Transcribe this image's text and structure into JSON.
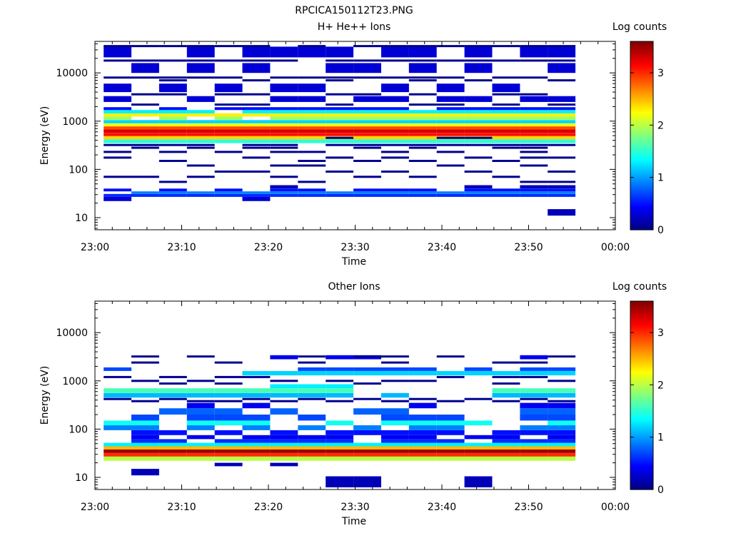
{
  "figure_title": "RPCICA150112T23.PNG",
  "chart_data": [
    {
      "type": "heatmap",
      "title": "H+ He++ Ions",
      "xlabel": "Time",
      "ylabel": "Energy (eV)",
      "x_ticks": [
        "23:00",
        "23:10",
        "23:20",
        "23:30",
        "23:40",
        "23:50",
        "00:00"
      ],
      "x_range_minutes": [
        0,
        60
      ],
      "y_scale": "log",
      "y_range": [
        5.6,
        45000
      ],
      "y_ticks": [
        {
          "label": "10",
          "value": 10
        },
        {
          "label": "100",
          "value": 100
        },
        {
          "label": "1000",
          "value": 1000
        },
        {
          "label": "10000",
          "value": 10000
        }
      ],
      "colorbar": {
        "label": "Log counts",
        "range": [
          0,
          3.6
        ],
        "ticks": [
          "0",
          "1",
          "2",
          "3"
        ],
        "colormap": "jet"
      },
      "time_bins_start_minutes": [
        1.0,
        4.2,
        7.4,
        10.6,
        13.8,
        17.0,
        20.2,
        23.4,
        26.6,
        29.8,
        33.0,
        36.2,
        39.4,
        42.6,
        45.8,
        49.0,
        52.2
      ],
      "time_bin_width_minutes": 3.2,
      "bands": [
        {
          "e_lo": 22,
          "e_hi": 27,
          "cols": [
            0,
            5
          ],
          "v": 0.3
        },
        {
          "e_lo": 27,
          "e_hi": 31,
          "cols": [
            0,
            1,
            2,
            3,
            4,
            5,
            6,
            7,
            8,
            9,
            10,
            11,
            12,
            13,
            14,
            15,
            16
          ],
          "v": 0.6
        },
        {
          "e_lo": 31,
          "e_hi": 35,
          "cols": [
            1,
            2,
            3,
            4,
            5,
            6,
            7,
            8,
            9,
            10,
            11,
            12,
            13,
            14,
            15,
            16
          ],
          "v": 0.9
        },
        {
          "e_lo": 35,
          "e_hi": 40,
          "cols": [
            0,
            2,
            4,
            6,
            7,
            9,
            10,
            11,
            13,
            14,
            15,
            16
          ],
          "v": 0.5
        },
        {
          "e_lo": 40,
          "e_hi": 47,
          "cols": [
            6,
            13,
            15,
            16
          ],
          "v": 0.2
        },
        {
          "e_lo": 11,
          "e_hi": 15,
          "cols": [
            16
          ],
          "v": 0.2
        },
        {
          "e_lo": 350,
          "e_hi": 420,
          "cols": [
            0,
            1,
            2,
            3,
            4,
            5,
            6,
            7,
            8,
            9,
            10,
            11,
            12,
            13,
            14,
            15,
            16
          ],
          "v": 1.5
        },
        {
          "e_lo": 420,
          "e_hi": 490,
          "cols": [
            0,
            1,
            2,
            3,
            4,
            5,
            6,
            7,
            8,
            9,
            10,
            11,
            12,
            13,
            14,
            15,
            16
          ],
          "v": 2.4
        },
        {
          "e_lo": 490,
          "e_hi": 570,
          "cols": [
            0,
            1,
            2,
            3,
            4,
            5,
            6,
            7,
            8,
            9,
            10,
            11,
            12,
            13,
            14,
            15,
            16
          ],
          "v": 3.1
        },
        {
          "e_lo": 570,
          "e_hi": 670,
          "cols": [
            0,
            1,
            2,
            3,
            4,
            5,
            6,
            7,
            8,
            9,
            10,
            11,
            12,
            13,
            14,
            15,
            16
          ],
          "v": 3.3
        },
        {
          "e_lo": 670,
          "e_hi": 780,
          "cols": [
            0,
            1,
            2,
            3,
            4,
            5,
            6,
            7,
            8,
            9,
            10,
            11,
            12,
            13,
            14,
            15,
            16
          ],
          "v": 2.9
        },
        {
          "e_lo": 780,
          "e_hi": 900,
          "cols": [
            0,
            1,
            2,
            3,
            4,
            5,
            6,
            7,
            8,
            9,
            10,
            11,
            12,
            13,
            14,
            15,
            16
          ],
          "v": 2.2
        },
        {
          "e_lo": 900,
          "e_hi": 1050,
          "cols": [
            0,
            1,
            2,
            3,
            4,
            5,
            6,
            7,
            8,
            9,
            10,
            11,
            12,
            13,
            14,
            15,
            16
          ],
          "v": 1.2
        },
        {
          "e_lo": 1050,
          "e_hi": 1250,
          "cols": [
            0,
            2,
            4,
            6,
            7,
            8,
            9,
            10,
            11,
            12,
            13,
            14,
            15,
            16
          ],
          "v": 1.9
        },
        {
          "e_lo": 1250,
          "e_hi": 1450,
          "cols": [
            0,
            1,
            2,
            3,
            4,
            5,
            6,
            7,
            8,
            9,
            10,
            11,
            12,
            13,
            14,
            15,
            16
          ],
          "v": 2.3
        },
        {
          "e_lo": 1450,
          "e_hi": 1700,
          "cols": [
            0,
            1,
            2,
            3,
            5,
            6,
            7,
            8,
            9,
            10,
            11,
            12,
            13,
            14,
            15,
            16
          ],
          "v": 1.3
        },
        {
          "e_lo": 1700,
          "e_hi": 1950,
          "cols": [
            0,
            2,
            4,
            5,
            6,
            7,
            8,
            9,
            10,
            12,
            13,
            14,
            15,
            16
          ],
          "v": 0.5
        },
        {
          "e_lo": 2500,
          "e_hi": 3300,
          "cols": [
            0,
            3,
            6,
            7,
            9,
            10,
            12,
            13,
            15,
            16
          ],
          "v": 0.3
        },
        {
          "e_lo": 4000,
          "e_hi": 6000,
          "cols": [
            0,
            2,
            4,
            6,
            7,
            10,
            12,
            14
          ],
          "v": 0.3
        },
        {
          "e_lo": 10000,
          "e_hi": 16000,
          "cols": [
            1,
            3,
            5,
            8,
            9,
            11,
            13,
            16
          ],
          "v": 0.3
        },
        {
          "e_lo": 21000,
          "e_hi": 35000,
          "cols": [
            0,
            3,
            5,
            6,
            7,
            8,
            10,
            11,
            13,
            15,
            16
          ],
          "v": 0.3
        }
      ],
      "lines": [
        {
          "e": 18000,
          "cols": [
            0,
            1,
            2,
            3,
            4,
            5,
            6,
            8,
            9,
            10,
            11,
            12,
            13,
            14,
            15,
            16
          ]
        },
        {
          "e": 36000,
          "cols": [
            0,
            1,
            2,
            3,
            4,
            5,
            7,
            9,
            10,
            11,
            12,
            13,
            14,
            15,
            16
          ]
        },
        {
          "e": 8000,
          "cols": [
            0,
            1,
            2,
            3,
            4,
            6,
            7,
            8,
            9,
            10,
            11,
            12,
            14,
            15
          ]
        },
        {
          "e": 7000,
          "cols": [
            2,
            5,
            8,
            11,
            13,
            16
          ]
        },
        {
          "e": 3600,
          "cols": [
            1,
            2,
            4,
            5,
            8,
            9,
            11,
            14,
            15
          ]
        },
        {
          "e": 2200,
          "cols": [
            1,
            4,
            5,
            8,
            11,
            12,
            14,
            16
          ]
        },
        {
          "e": 320,
          "cols": [
            0,
            1,
            2,
            3,
            5,
            6,
            8,
            9,
            10,
            11,
            12,
            13,
            14,
            15,
            16
          ]
        },
        {
          "e": 280,
          "cols": [
            1,
            3,
            5,
            6,
            9,
            11,
            14,
            15
          ]
        },
        {
          "e": 230,
          "cols": [
            0,
            2,
            4,
            6,
            7,
            10,
            12,
            15
          ]
        },
        {
          "e": 175,
          "cols": [
            0,
            5,
            8,
            10,
            13,
            15,
            16
          ]
        },
        {
          "e": 150,
          "cols": [
            2,
            7,
            9,
            11,
            14
          ]
        },
        {
          "e": 120,
          "cols": [
            3,
            6,
            7,
            12,
            15
          ]
        },
        {
          "e": 90,
          "cols": [
            4,
            5,
            8,
            10,
            13,
            16
          ]
        },
        {
          "e": 70,
          "cols": [
            0,
            1,
            3,
            6,
            9,
            11,
            14
          ]
        },
        {
          "e": 55,
          "cols": [
            2,
            7,
            15,
            16
          ]
        },
        {
          "e": 450,
          "cols": [
            8,
            12,
            13
          ]
        }
      ]
    },
    {
      "type": "heatmap",
      "title": "Other Ions",
      "xlabel": "Time",
      "ylabel": "Energy (eV)",
      "x_ticks": [
        "23:00",
        "23:10",
        "23:20",
        "23:30",
        "23:40",
        "23:50",
        "00:00"
      ],
      "x_range_minutes": [
        0,
        60
      ],
      "y_scale": "log",
      "y_range": [
        5.6,
        45000
      ],
      "y_ticks": [
        {
          "label": "10",
          "value": 10
        },
        {
          "label": "100",
          "value": 100
        },
        {
          "label": "1000",
          "value": 1000
        },
        {
          "label": "10000",
          "value": 10000
        }
      ],
      "colorbar": {
        "label": "Log counts",
        "range": [
          0,
          3.6
        ],
        "ticks": [
          "0",
          "1",
          "2",
          "3"
        ],
        "colormap": "jet"
      },
      "time_bins_start_minutes": [
        1.0,
        4.2,
        7.4,
        10.6,
        13.8,
        17.0,
        20.2,
        23.4,
        26.6,
        29.8,
        33.0,
        36.2,
        39.4,
        42.6,
        45.8,
        49.0,
        52.2
      ],
      "time_bin_width_minutes": 3.2,
      "bands": [
        {
          "e_lo": 22,
          "e_hi": 27,
          "cols": [
            0,
            1,
            2,
            3,
            4,
            5,
            6,
            7,
            8,
            9,
            10,
            11,
            12,
            13,
            14,
            15,
            16
          ],
          "v": 2.0
        },
        {
          "e_lo": 27,
          "e_hi": 32,
          "cols": [
            0,
            1,
            2,
            3,
            4,
            5,
            6,
            7,
            8,
            9,
            10,
            11,
            12,
            13,
            14,
            15,
            16
          ],
          "v": 3.0
        },
        {
          "e_lo": 32,
          "e_hi": 38,
          "cols": [
            0,
            1,
            2,
            3,
            4,
            5,
            6,
            7,
            8,
            9,
            10,
            11,
            12,
            13,
            14,
            15,
            16
          ],
          "v": 3.5
        },
        {
          "e_lo": 38,
          "e_hi": 44,
          "cols": [
            0,
            1,
            2,
            3,
            4,
            5,
            6,
            7,
            8,
            9,
            10,
            11,
            12,
            13,
            14,
            15,
            16
          ],
          "v": 2.5
        },
        {
          "e_lo": 44,
          "e_hi": 52,
          "cols": [
            0,
            1,
            2,
            3,
            4,
            5,
            6,
            7,
            8,
            9,
            10,
            11,
            12,
            13,
            14,
            15,
            16
          ],
          "v": 1.3
        },
        {
          "e_lo": 52,
          "e_hi": 62,
          "cols": [
            1,
            2,
            4,
            5,
            6,
            7,
            8,
            10,
            11,
            12,
            14,
            15,
            16
          ],
          "v": 0.6
        },
        {
          "e_lo": 62,
          "e_hi": 75,
          "cols": [
            1,
            3,
            5,
            6,
            7,
            8,
            10,
            11,
            13,
            14,
            16
          ],
          "v": 0.4
        },
        {
          "e_lo": 75,
          "e_hi": 95,
          "cols": [
            1,
            2,
            4,
            6,
            8,
            9,
            10,
            11,
            12,
            14,
            15,
            16
          ],
          "v": 0.5
        },
        {
          "e_lo": 95,
          "e_hi": 120,
          "cols": [
            0,
            1,
            3,
            5,
            7,
            9,
            11,
            12,
            15,
            16
          ],
          "v": 0.9
        },
        {
          "e_lo": 120,
          "e_hi": 150,
          "cols": [
            0,
            1,
            3,
            4,
            5,
            8,
            10,
            11,
            12,
            13,
            16
          ],
          "v": 1.4
        },
        {
          "e_lo": 150,
          "e_hi": 200,
          "cols": [
            1,
            3,
            4,
            5,
            7,
            10,
            11,
            12,
            15,
            16
          ],
          "v": 0.7
        },
        {
          "e_lo": 200,
          "e_hi": 270,
          "cols": [
            2,
            3,
            4,
            6,
            9,
            10,
            15,
            16
          ],
          "v": 0.8
        },
        {
          "e_lo": 270,
          "e_hi": 350,
          "cols": [
            3,
            5,
            11,
            15,
            16
          ],
          "v": 0.4
        },
        {
          "e_lo": 450,
          "e_hi": 560,
          "cols": [
            0,
            1,
            2,
            3,
            4,
            5,
            6,
            7,
            8,
            10,
            14,
            15,
            16
          ],
          "v": 1.1
        },
        {
          "e_lo": 560,
          "e_hi": 700,
          "cols": [
            0,
            1,
            2,
            3,
            4,
            5,
            6,
            7,
            8,
            14,
            15,
            16
          ],
          "v": 1.6
        },
        {
          "e_lo": 700,
          "e_hi": 850,
          "cols": [
            6,
            7,
            8
          ],
          "v": 1.3
        },
        {
          "e_lo": 1300,
          "e_hi": 1600,
          "cols": [
            5,
            6,
            7,
            8,
            9,
            10,
            11,
            12,
            13,
            14,
            15,
            16
          ],
          "v": 1.2
        },
        {
          "e_lo": 1600,
          "e_hi": 1900,
          "cols": [
            0,
            7,
            8,
            9,
            10,
            11,
            13,
            15,
            16
          ],
          "v": 0.7
        },
        {
          "e_lo": 2800,
          "e_hi": 3400,
          "cols": [
            6,
            8,
            9,
            15
          ],
          "v": 0.4
        },
        {
          "e_lo": 17,
          "e_hi": 20,
          "cols": [
            4,
            6
          ],
          "v": 0.2
        },
        {
          "e_lo": 11,
          "e_hi": 15,
          "cols": [
            1
          ],
          "v": 0.2
        },
        {
          "e_lo": 6.2,
          "e_hi": 10.5,
          "cols": [
            8,
            9,
            13
          ],
          "v": 0.2
        }
      ],
      "lines": [
        {
          "e": 3200,
          "cols": [
            1,
            3,
            7,
            9,
            10,
            12,
            16
          ]
        },
        {
          "e": 2400,
          "cols": [
            1,
            4,
            7,
            10,
            14,
            15
          ]
        },
        {
          "e": 1200,
          "cols": [
            0,
            2,
            4,
            5,
            12,
            14,
            15
          ]
        },
        {
          "e": 1000,
          "cols": [
            1,
            3,
            6,
            8,
            10,
            11,
            16
          ]
        },
        {
          "e": 420,
          "cols": [
            0,
            2,
            5,
            7,
            9,
            11,
            13,
            15
          ]
        },
        {
          "e": 380,
          "cols": [
            1,
            3,
            4,
            6,
            8,
            10,
            12,
            14,
            16
          ]
        },
        {
          "e": 880,
          "cols": [
            2,
            4,
            9,
            14
          ]
        }
      ]
    }
  ]
}
